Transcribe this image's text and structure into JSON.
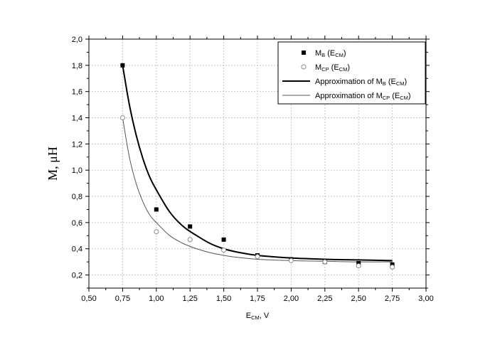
{
  "chart_data": {
    "type": "scatter",
    "xlabel": {
      "main": "E",
      "sub": "CM",
      "suffix": ", V"
    },
    "ylabel": {
      "main": "M, μH"
    },
    "xlim": [
      0.5,
      3.0
    ],
    "ylim": [
      0.1,
      2.0
    ],
    "x_ticks": [
      0.5,
      0.75,
      1.0,
      1.25,
      1.5,
      1.75,
      2.0,
      2.25,
      2.5,
      2.75,
      3.0
    ],
    "x_tick_labels": [
      "0,50",
      "0,75",
      "1,00",
      "1,25",
      "1,50",
      "1,75",
      "2,00",
      "2,25",
      "2,50",
      "2,75",
      "3,00"
    ],
    "y_ticks": [
      0.2,
      0.4,
      0.6,
      0.8,
      1.0,
      1.2,
      1.4,
      1.6,
      1.8,
      2.0
    ],
    "y_tick_labels": [
      "0,2",
      "0,4",
      "0,6",
      "0,8",
      "1,0",
      "1,2",
      "1,4",
      "1,6",
      "1,8",
      "2,0"
    ],
    "grid": true,
    "legend_position": "top-right",
    "series": [
      {
        "legend": {
          "pre": "M",
          "sub1": "B",
          "mid": " (E",
          "sub2": "CM",
          "post": ")"
        },
        "marker": "filled-square",
        "color": "#000000",
        "x": [
          0.75,
          1.0,
          1.25,
          1.5,
          1.75,
          2.0,
          2.25,
          2.5,
          2.75
        ],
        "y": [
          1.8,
          0.7,
          0.57,
          0.47,
          0.35,
          0.32,
          0.3,
          0.29,
          0.28
        ]
      },
      {
        "legend": {
          "pre": "M",
          "sub1": "CP",
          "mid": " (E",
          "sub2": "CM",
          "post": ")"
        },
        "marker": "open-circle",
        "color": "#888888",
        "x": [
          0.75,
          1.0,
          1.25,
          1.5,
          1.75,
          2.0,
          2.25,
          2.5,
          2.75
        ],
        "y": [
          1.4,
          0.53,
          0.47,
          0.39,
          0.34,
          0.31,
          0.3,
          0.27,
          0.26
        ]
      },
      {
        "legend": {
          "pre": "Approximation of M",
          "sub1": "B",
          "mid": " (E",
          "sub2": "CM",
          "post": ")"
        },
        "line": true,
        "color": "#000000",
        "x": [
          0.75,
          0.8,
          0.85,
          0.9,
          0.95,
          1.0,
          1.1,
          1.2,
          1.3,
          1.4,
          1.5,
          1.6,
          1.75,
          2.0,
          2.25,
          2.5,
          2.75
        ],
        "y": [
          1.8,
          1.5,
          1.27,
          1.09,
          0.95,
          0.85,
          0.68,
          0.57,
          0.5,
          0.44,
          0.4,
          0.375,
          0.35,
          0.33,
          0.32,
          0.315,
          0.31
        ]
      },
      {
        "legend": {
          "pre": "Approximation of M",
          "sub1": "CP",
          "mid": " (E",
          "sub2": "CM",
          "post": ")"
        },
        "line": true,
        "color": "#555555",
        "x": [
          0.75,
          0.8,
          0.85,
          0.9,
          0.95,
          1.0,
          1.1,
          1.2,
          1.3,
          1.4,
          1.5,
          1.6,
          1.75,
          2.0,
          2.25,
          2.5,
          2.75
        ],
        "y": [
          1.4,
          1.1,
          0.9,
          0.76,
          0.66,
          0.6,
          0.5,
          0.44,
          0.4,
          0.37,
          0.35,
          0.335,
          0.32,
          0.31,
          0.305,
          0.3,
          0.3
        ]
      }
    ]
  }
}
